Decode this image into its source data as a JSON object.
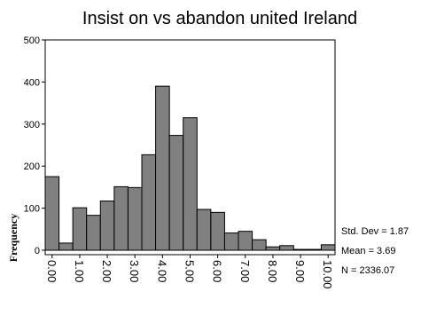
{
  "chart_data": {
    "type": "bar",
    "title": "Insist on vs abandon united Ireland",
    "ylabel": "Frequency",
    "xlabel": "",
    "ylim": [
      0,
      500
    ],
    "yticks": [
      "0",
      "100",
      "200",
      "300",
      "400",
      "500"
    ],
    "xticks": [
      "0.00",
      "1.00",
      "2.00",
      "3.00",
      "4.00",
      "5.00",
      "6.00",
      "7.00",
      "8.00",
      "9.00",
      "10.00"
    ],
    "bin_edges": [
      0,
      0.5,
      1,
      1.5,
      2,
      2.5,
      3,
      3.5,
      4,
      4.5,
      5,
      5.5,
      6,
      6.5,
      7,
      7.5,
      8,
      8.5,
      9,
      9.5,
      10,
      10.5
    ],
    "values": [
      175,
      17,
      101,
      83,
      117,
      151,
      149,
      227,
      390,
      273,
      315,
      97,
      90,
      41,
      45,
      25,
      8,
      11,
      2,
      2,
      13
    ],
    "bar_color": "#808080",
    "stats": {
      "std_dev": "Std. Dev = 1.87",
      "mean": "Mean = 3.69",
      "n": "N = 2336.07"
    }
  }
}
